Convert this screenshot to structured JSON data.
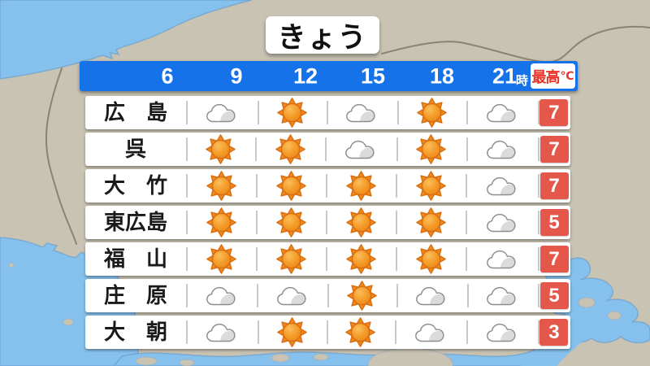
{
  "title": "きょう",
  "header": {
    "times": [
      "6",
      "9",
      "12",
      "15",
      "18",
      "21"
    ],
    "hour_suffix": "時",
    "max_temp_label": "最高",
    "degree_symbol": "℃"
  },
  "table": {
    "rows": [
      {
        "city": "広　島",
        "icons": [
          "cloudy",
          "sunny",
          "cloudy",
          "sunny",
          "cloudy"
        ],
        "max_temp": "7"
      },
      {
        "city": "呉",
        "icons": [
          "sunny",
          "sunny",
          "cloudy",
          "sunny",
          "cloudy"
        ],
        "max_temp": "7"
      },
      {
        "city": "大　竹",
        "icons": [
          "sunny",
          "sunny",
          "sunny",
          "sunny",
          "cloudy"
        ],
        "max_temp": "7"
      },
      {
        "city": "東広島",
        "icons": [
          "sunny",
          "sunny",
          "sunny",
          "sunny",
          "cloudy"
        ],
        "max_temp": "5"
      },
      {
        "city": "福　山",
        "icons": [
          "sunny",
          "sunny",
          "sunny",
          "sunny",
          "cloudy"
        ],
        "max_temp": "7"
      },
      {
        "city": "庄　原",
        "icons": [
          "cloudy",
          "cloudy",
          "sunny",
          "cloudy",
          "cloudy"
        ],
        "max_temp": "5"
      },
      {
        "city": "大　朝",
        "icons": [
          "cloudy",
          "sunny",
          "sunny",
          "cloudy",
          "cloudy"
        ],
        "max_temp": "3"
      }
    ]
  },
  "icons": {
    "sunny": "sun-icon",
    "cloudy": "cloud-icon"
  },
  "colors": {
    "header_blue": "#1672E8",
    "temp_box_red": "#E5574A",
    "max_label_red": "#E8352A",
    "sea_blue": "#86C0EC",
    "land_gray": "#C9C3B3",
    "sun_orange": "#F08A1E",
    "row_white": "#FFFFFF"
  }
}
